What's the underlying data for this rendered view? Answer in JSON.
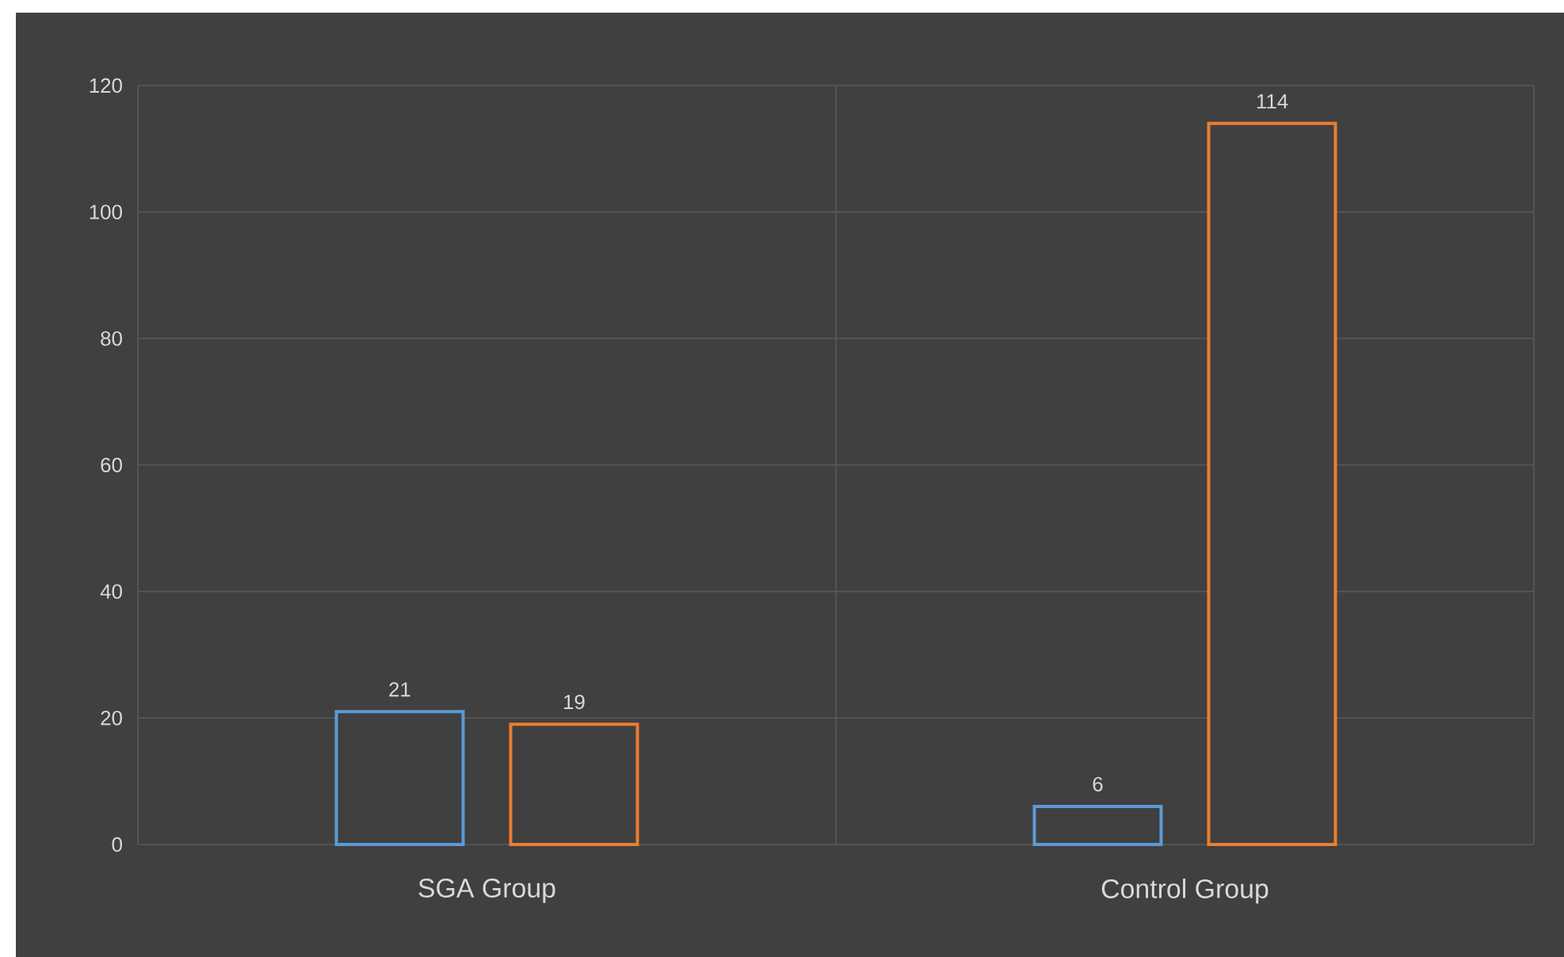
{
  "chart_data": {
    "type": "bar",
    "categories": [
      "SGA Group",
      "Control Group"
    ],
    "series": [
      {
        "color": "#5b9bd5",
        "values": [
          21,
          6
        ]
      },
      {
        "color": "#ed7d31",
        "values": [
          19,
          114
        ]
      }
    ],
    "ylim": [
      0,
      120
    ],
    "yticks": [
      0,
      20,
      40,
      60,
      80,
      100,
      120
    ],
    "grid": true,
    "data_labels": true
  }
}
